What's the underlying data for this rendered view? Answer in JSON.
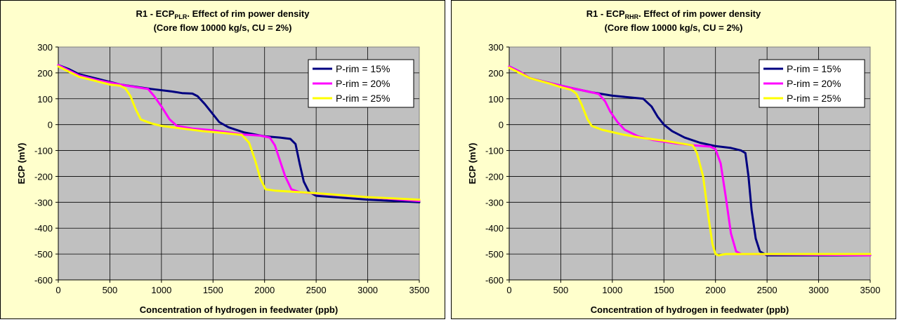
{
  "chart_data": [
    {
      "type": "line",
      "title_main": "R1 - ECP",
      "title_sub": "PLR",
      "title_rest": ". Effect of rim power density",
      "title_line2": "(Core flow 10000 kg/s, CU = 2%)",
      "xlabel": "Concentration of hydrogen in feedwater (ppb)",
      "ylabel": "ECP (mV)",
      "xlim": [
        0,
        3500
      ],
      "ylim": [
        -600,
        300
      ],
      "xticks": [
        0,
        500,
        1000,
        1500,
        2000,
        2500,
        3000,
        3500
      ],
      "yticks": [
        300,
        200,
        100,
        0,
        -100,
        -200,
        -300,
        -400,
        -500,
        -600
      ],
      "grid": true,
      "legend_position": "top-right",
      "series": [
        {
          "name": "P-rim = 15%",
          "color": "#000080",
          "points": [
            [
              0,
              230
            ],
            [
              100,
              215
            ],
            [
              200,
              195
            ],
            [
              400,
              175
            ],
            [
              600,
              155
            ],
            [
              900,
              138
            ],
            [
              1100,
              128
            ],
            [
              1200,
              122
            ],
            [
              1300,
              120
            ],
            [
              1350,
              110
            ],
            [
              1420,
              80
            ],
            [
              1500,
              40
            ],
            [
              1560,
              10
            ],
            [
              1650,
              -10
            ],
            [
              1800,
              -30
            ],
            [
              2000,
              -45
            ],
            [
              2150,
              -50
            ],
            [
              2250,
              -55
            ],
            [
              2300,
              -75
            ],
            [
              2340,
              -150
            ],
            [
              2380,
              -220
            ],
            [
              2430,
              -260
            ],
            [
              2500,
              -275
            ],
            [
              3000,
              -290
            ],
            [
              3500,
              -300
            ]
          ]
        },
        {
          "name": "P-rim = 20%",
          "color": "#ff00ff",
          "points": [
            [
              0,
              230
            ],
            [
              100,
              210
            ],
            [
              200,
              190
            ],
            [
              400,
              170
            ],
            [
              600,
              155
            ],
            [
              750,
              145
            ],
            [
              870,
              138
            ],
            [
              930,
              110
            ],
            [
              1000,
              70
            ],
            [
              1080,
              20
            ],
            [
              1150,
              -5
            ],
            [
              1300,
              -15
            ],
            [
              1500,
              -22
            ],
            [
              1650,
              -30
            ],
            [
              1800,
              -38
            ],
            [
              1950,
              -42
            ],
            [
              2050,
              -50
            ],
            [
              2100,
              -80
            ],
            [
              2150,
              -140
            ],
            [
              2200,
              -200
            ],
            [
              2260,
              -250
            ],
            [
              2350,
              -262
            ],
            [
              3000,
              -280
            ],
            [
              3500,
              -295
            ]
          ]
        },
        {
          "name": "P-rim = 25%",
          "color": "#ffff00",
          "points": [
            [
              0,
              225
            ],
            [
              100,
              205
            ],
            [
              200,
              185
            ],
            [
              400,
              165
            ],
            [
              500,
              155
            ],
            [
              600,
              150
            ],
            [
              650,
              140
            ],
            [
              700,
              110
            ],
            [
              750,
              60
            ],
            [
              800,
              20
            ],
            [
              900,
              5
            ],
            [
              1000,
              -5
            ],
            [
              1200,
              -15
            ],
            [
              1400,
              -25
            ],
            [
              1600,
              -32
            ],
            [
              1780,
              -40
            ],
            [
              1850,
              -70
            ],
            [
              1910,
              -140
            ],
            [
              1960,
              -210
            ],
            [
              2010,
              -250
            ],
            [
              2100,
              -255
            ],
            [
              2500,
              -265
            ],
            [
              3000,
              -280
            ],
            [
              3500,
              -290
            ]
          ]
        }
      ]
    },
    {
      "type": "line",
      "title_main": "R1 - ECP",
      "title_sub": "RHR",
      "title_rest": ". Effect of rim power density",
      "title_line2": "(Core flow 10000 kg/s, CU = 2%)",
      "xlabel": "Concentration of hydrogen in feedwater (ppb)",
      "ylabel": "ECP (mV)",
      "xlim": [
        0,
        3500
      ],
      "ylim": [
        -600,
        300
      ],
      "xticks": [
        0,
        500,
        1000,
        1500,
        2000,
        2500,
        3000,
        3500
      ],
      "yticks": [
        300,
        200,
        100,
        0,
        -100,
        -200,
        -300,
        -400,
        -500,
        -600
      ],
      "grid": true,
      "legend_position": "top-right",
      "series": [
        {
          "name": "P-rim = 15%",
          "color": "#000080",
          "points": [
            [
              0,
              225
            ],
            [
              100,
              205
            ],
            [
              200,
              180
            ],
            [
              400,
              160
            ],
            [
              600,
              142
            ],
            [
              800,
              125
            ],
            [
              1000,
              112
            ],
            [
              1200,
              104
            ],
            [
              1300,
              100
            ],
            [
              1380,
              70
            ],
            [
              1440,
              30
            ],
            [
              1500,
              0
            ],
            [
              1580,
              -25
            ],
            [
              1700,
              -50
            ],
            [
              1850,
              -70
            ],
            [
              2000,
              -83
            ],
            [
              2150,
              -90
            ],
            [
              2250,
              -100
            ],
            [
              2290,
              -110
            ],
            [
              2320,
              -200
            ],
            [
              2350,
              -330
            ],
            [
              2390,
              -440
            ],
            [
              2430,
              -490
            ],
            [
              2500,
              -505
            ],
            [
              3000,
              -505
            ],
            [
              3500,
              -505
            ]
          ]
        },
        {
          "name": "P-rim = 20%",
          "color": "#ff00ff",
          "points": [
            [
              0,
              225
            ],
            [
              100,
              205
            ],
            [
              200,
              180
            ],
            [
              400,
              160
            ],
            [
              600,
              142
            ],
            [
              800,
              125
            ],
            [
              870,
              118
            ],
            [
              930,
              90
            ],
            [
              980,
              50
            ],
            [
              1050,
              10
            ],
            [
              1120,
              -20
            ],
            [
              1250,
              -45
            ],
            [
              1400,
              -60
            ],
            [
              1600,
              -72
            ],
            [
              1800,
              -80
            ],
            [
              1950,
              -85
            ],
            [
              2000,
              -95
            ],
            [
              2050,
              -150
            ],
            [
              2100,
              -280
            ],
            [
              2150,
              -420
            ],
            [
              2200,
              -490
            ],
            [
              2250,
              -500
            ],
            [
              3500,
              -505
            ]
          ]
        },
        {
          "name": "P-rim = 25%",
          "color": "#ffff00",
          "points": [
            [
              0,
              220
            ],
            [
              100,
              200
            ],
            [
              200,
              180
            ],
            [
              400,
              158
            ],
            [
              500,
              145
            ],
            [
              600,
              135
            ],
            [
              650,
              120
            ],
            [
              700,
              80
            ],
            [
              760,
              20
            ],
            [
              800,
              -5
            ],
            [
              900,
              -20
            ],
            [
              1100,
              -38
            ],
            [
              1300,
              -52
            ],
            [
              1500,
              -62
            ],
            [
              1650,
              -72
            ],
            [
              1780,
              -80
            ],
            [
              1820,
              -110
            ],
            [
              1880,
              -200
            ],
            [
              1930,
              -350
            ],
            [
              1970,
              -460
            ],
            [
              2000,
              -500
            ],
            [
              2030,
              -505
            ],
            [
              2100,
              -500
            ],
            [
              3500,
              -500
            ]
          ]
        }
      ]
    }
  ]
}
